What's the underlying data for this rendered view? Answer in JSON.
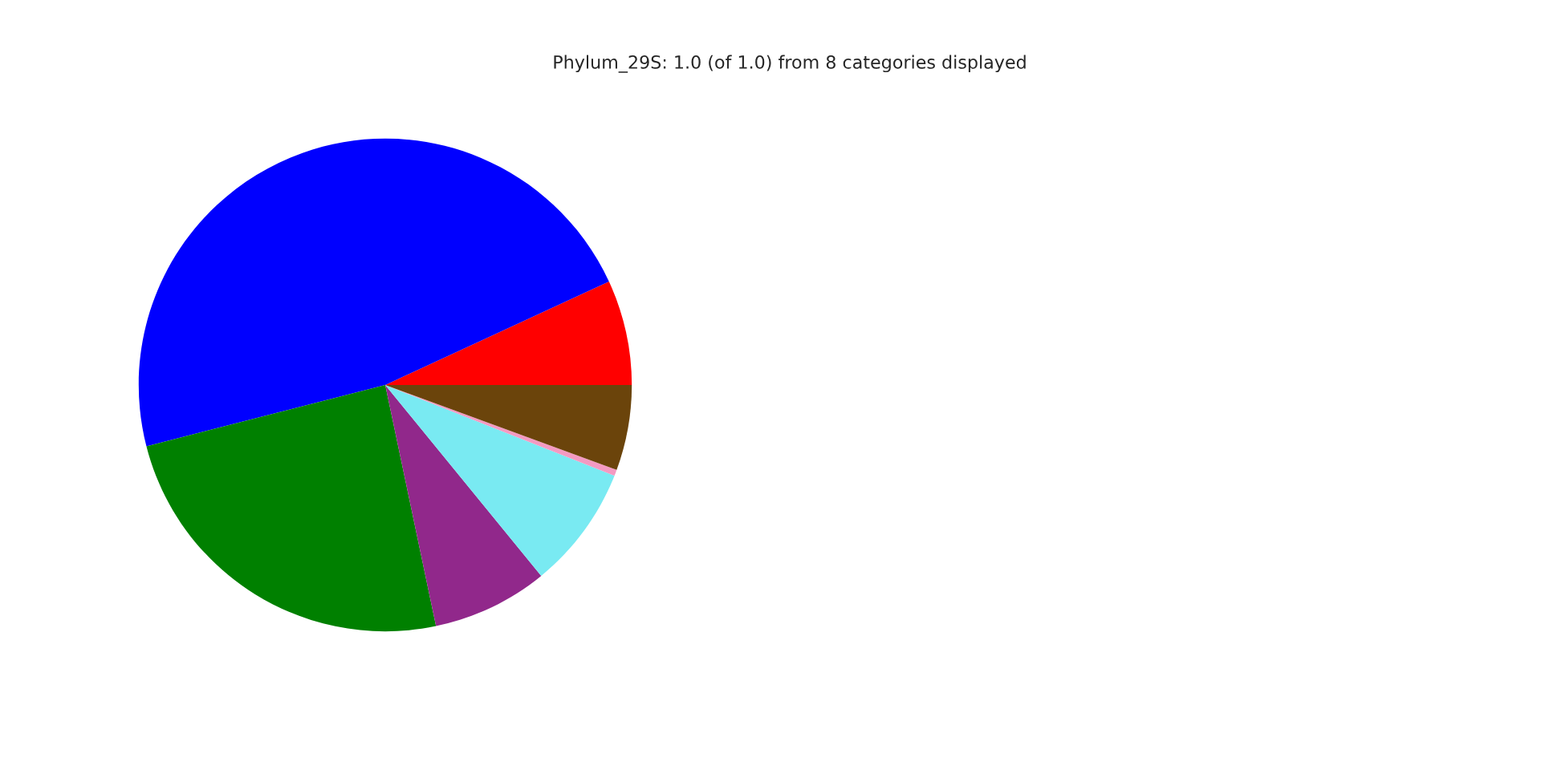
{
  "chart_data": {
    "type": "pie",
    "title": "Phylum_29S: 1.0 (of 1.0) from 8 categories displayed",
    "categories": [
      null,
      null,
      null,
      null,
      null,
      null,
      null
    ],
    "values": [
      6.9,
      47.1,
      24.3,
      7.6,
      8.1,
      0.4,
      5.6
    ],
    "colors": [
      "#ff0000",
      "#0000ff",
      "#008000",
      "#91288b",
      "#79eaf2",
      "#f49ac2",
      "#6b440b"
    ],
    "legend": false
  }
}
